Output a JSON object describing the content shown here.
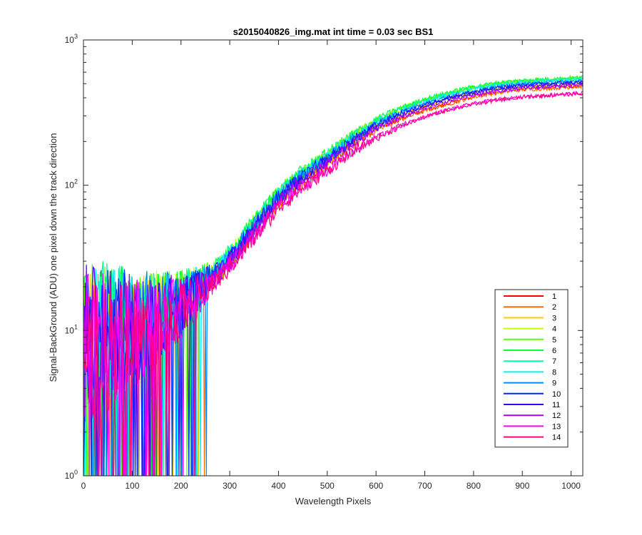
{
  "chart_data": {
    "type": "line",
    "title": "s2015040826_img.mat int time = 0.03 sec   BS1",
    "xlabel": "Wavelength Pixels",
    "ylabel": "Signal-BackGround (ADU) one pixel down the track direction",
    "xlim": [
      0,
      1024
    ],
    "ylim": [
      1,
      1000
    ],
    "yscale": "log",
    "x_ticks": [
      "0",
      "100",
      "200",
      "300",
      "400",
      "500",
      "600",
      "700",
      "800",
      "900",
      "1000"
    ],
    "y_ticks": [
      {
        "base": "10",
        "exp": "0"
      },
      {
        "base": "10",
        "exp": "1"
      },
      {
        "base": "10",
        "exp": "2"
      },
      {
        "base": "10",
        "exp": "3"
      }
    ],
    "grid": false,
    "legend_position": "bottom-right",
    "x": [
      0,
      50,
      100,
      150,
      200,
      250,
      300,
      350,
      400,
      450,
      500,
      550,
      600,
      650,
      700,
      750,
      800,
      850,
      900,
      950,
      1000,
      1024
    ],
    "series": [
      {
        "name": "1",
        "color": "#ff0000",
        "values": [
          8,
          9,
          10,
          12,
          15,
          20,
          30,
          50,
          80,
          110,
          145,
          195,
          245,
          290,
          330,
          370,
          410,
          440,
          460,
          470,
          480,
          485
        ]
      },
      {
        "name": "2",
        "color": "#ff6a00",
        "values": [
          8,
          9,
          10,
          12,
          15,
          20,
          30,
          49,
          78,
          108,
          142,
          190,
          240,
          285,
          325,
          365,
          405,
          435,
          455,
          465,
          475,
          480
        ]
      },
      {
        "name": "3",
        "color": "#ffcc00",
        "values": [
          8,
          9,
          10,
          12,
          15,
          21,
          31,
          52,
          82,
          115,
          150,
          200,
          255,
          305,
          350,
          395,
          430,
          460,
          480,
          490,
          500,
          505
        ]
      },
      {
        "name": "4",
        "color": "#c8ff00",
        "values": [
          9,
          10,
          11,
          13,
          16,
          22,
          33,
          55,
          88,
          122,
          160,
          215,
          275,
          330,
          380,
          425,
          465,
          495,
          515,
          525,
          535,
          540
        ]
      },
      {
        "name": "5",
        "color": "#5eff00",
        "values": [
          9,
          10,
          11,
          13,
          16,
          22,
          34,
          56,
          90,
          125,
          165,
          220,
          280,
          338,
          390,
          435,
          475,
          505,
          525,
          535,
          545,
          550
        ]
      },
      {
        "name": "6",
        "color": "#00ff3a",
        "values": [
          9,
          10,
          11,
          13,
          16,
          22,
          34,
          57,
          91,
          127,
          167,
          223,
          285,
          342,
          395,
          440,
          480,
          510,
          530,
          540,
          550,
          555
        ]
      },
      {
        "name": "7",
        "color": "#00ffa0",
        "values": [
          9,
          10,
          11,
          13,
          16,
          22,
          33,
          55,
          89,
          123,
          162,
          217,
          278,
          332,
          382,
          428,
          468,
          498,
          518,
          528,
          538,
          543
        ]
      },
      {
        "name": "8",
        "color": "#00f2ff",
        "values": [
          9,
          10,
          11,
          13,
          16,
          21,
          33,
          54,
          87,
          120,
          158,
          212,
          270,
          325,
          375,
          420,
          460,
          490,
          510,
          520,
          530,
          535
        ]
      },
      {
        "name": "9",
        "color": "#008cff",
        "values": [
          8,
          9,
          11,
          13,
          16,
          21,
          32,
          53,
          85,
          118,
          155,
          208,
          265,
          318,
          366,
          410,
          448,
          478,
          498,
          508,
          518,
          522
        ]
      },
      {
        "name": "10",
        "color": "#0026ff",
        "values": [
          8,
          9,
          11,
          12,
          15,
          21,
          32,
          52,
          84,
          116,
          153,
          205,
          262,
          314,
          360,
          404,
          442,
          472,
          492,
          502,
          512,
          516
        ]
      },
      {
        "name": "11",
        "color": "#4000ff",
        "values": [
          8,
          9,
          10,
          12,
          15,
          21,
          31,
          51,
          82,
          113,
          150,
          200,
          255,
          305,
          352,
          395,
          432,
          462,
          482,
          492,
          502,
          506
        ]
      },
      {
        "name": "12",
        "color": "#a600ff",
        "values": [
          8,
          9,
          10,
          12,
          15,
          20,
          30,
          49,
          79,
          109,
          144,
          193,
          246,
          295,
          340,
          382,
          418,
          446,
          466,
          476,
          486,
          490
        ]
      },
      {
        "name": "13",
        "color": "#ff00f2",
        "values": [
          7,
          8,
          9,
          11,
          14,
          19,
          28,
          45,
          72,
          98,
          128,
          170,
          215,
          258,
          298,
          335,
          365,
          390,
          408,
          418,
          428,
          432
        ]
      },
      {
        "name": "14",
        "color": "#ff0080",
        "values": [
          7,
          8,
          9,
          11,
          14,
          19,
          28,
          44,
          71,
          97,
          127,
          168,
          212,
          255,
          295,
          332,
          362,
          387,
          405,
          415,
          425,
          430
        ]
      }
    ]
  }
}
